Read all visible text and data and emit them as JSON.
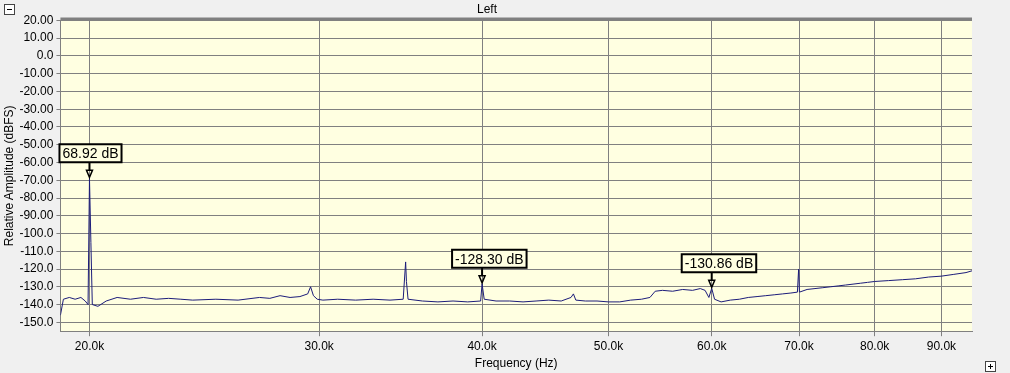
{
  "chart_data": {
    "type": "line",
    "title": "Left",
    "xlabel": "Frequency (Hz)",
    "ylabel": "Relative Amplitude (dBFS)",
    "log": "x",
    "grid": true,
    "color": "#1c1c7a",
    "x": [
      19000,
      19100,
      19300,
      19500,
      19700,
      19850,
      19950,
      20000,
      20050,
      20100,
      20300,
      20600,
      21000,
      21500,
      22000,
      22500,
      23000,
      23500,
      24000,
      25000,
      26000,
      27000,
      27500,
      28000,
      28500,
      29000,
      29400,
      29550,
      29700,
      29900,
      30200,
      31000,
      32000,
      33000,
      34000,
      34800,
      34950,
      35000,
      35100,
      36000,
      37000,
      38000,
      39000,
      39900,
      40000,
      40150,
      41000,
      42000,
      43000,
      44000,
      45000,
      46000,
      46800,
      47000,
      47200,
      48000,
      49000,
      50000,
      51000,
      52000,
      53000,
      53800,
      54300,
      55000,
      56000,
      57000,
      58000,
      58800,
      59300,
      59700,
      60000,
      60300,
      61000,
      62000,
      63000,
      64000,
      65000,
      66000,
      67000,
      68000,
      69000,
      69800,
      69950,
      70050,
      71000,
      72000,
      73000,
      74000,
      75000,
      76000,
      77000,
      78000,
      79000,
      80000,
      82000,
      84000,
      86000,
      88000,
      90000,
      92000,
      94000,
      95000
    ],
    "values": [
      -146,
      -137,
      -136,
      -137,
      -136,
      -138,
      -140,
      -68.92,
      -105,
      -140,
      -141,
      -138,
      -136,
      -137,
      -136,
      -137,
      -136.5,
      -137,
      -137.5,
      -137,
      -137.5,
      -136,
      -136.5,
      -135,
      -136,
      -135.5,
      -134,
      -130,
      -135,
      -137,
      -137.5,
      -137,
      -137.5,
      -137,
      -137.5,
      -137,
      -116,
      -127,
      -137,
      -138,
      -138.5,
      -138,
      -138.5,
      -138,
      -128.3,
      -137,
      -138,
      -138,
      -138.5,
      -138,
      -137.5,
      -138,
      -136,
      -134,
      -137.5,
      -138,
      -138,
      -138.5,
      -138.5,
      -137.5,
      -137,
      -136,
      -132.5,
      -132,
      -132.5,
      -131.5,
      -132,
      -131,
      -132,
      -136,
      -130.86,
      -137,
      -138.5,
      -137.5,
      -137,
      -136,
      -135.5,
      -135,
      -134.5,
      -134,
      -133.5,
      -133,
      -120,
      -133,
      -131.5,
      -131,
      -130.5,
      -130,
      -129.5,
      -129,
      -128.5,
      -128,
      -127.5,
      -127,
      -126.5,
      -126,
      -125.5,
      -124.5,
      -124,
      -123,
      -122,
      -121
    ],
    "xlim": [
      19000,
      95000
    ],
    "xticks": [
      {
        "value": 20000,
        "label": "20.0k"
      },
      {
        "value": 30000,
        "label": "30.0k"
      },
      {
        "value": 40000,
        "label": "40.0k"
      },
      {
        "value": 50000,
        "label": "50.0k"
      },
      {
        "value": 60000,
        "label": "60.0k"
      },
      {
        "value": 70000,
        "label": "70.0k"
      },
      {
        "value": 80000,
        "label": "80.0k"
      },
      {
        "value": 90000,
        "label": "90.0k"
      }
    ],
    "ylim": [
      -155,
      20
    ],
    "yticks": [
      {
        "value": 20,
        "label": "20.00"
      },
      {
        "value": 10,
        "label": "10.00"
      },
      {
        "value": 0,
        "label": "0.0"
      },
      {
        "value": -10,
        "label": "-10.00"
      },
      {
        "value": -20,
        "label": "-20.00"
      },
      {
        "value": -30,
        "label": "-30.00"
      },
      {
        "value": -40,
        "label": "-40.00"
      },
      {
        "value": -50,
        "label": "-50.00"
      },
      {
        "value": -60,
        "label": "-60.00"
      },
      {
        "value": -70,
        "label": "-70.00"
      },
      {
        "value": -80,
        "label": "-80.00"
      },
      {
        "value": -90,
        "label": "-90.00"
      },
      {
        "value": -100,
        "label": "-100.0"
      },
      {
        "value": -110,
        "label": "-110.0"
      },
      {
        "value": -120,
        "label": "-120.0"
      },
      {
        "value": -130,
        "label": "-130.0"
      },
      {
        "value": -140,
        "label": "-140.0"
      },
      {
        "value": -150,
        "label": "-150.0"
      }
    ],
    "annotations": [
      {
        "text": "68.92 dB",
        "x": 20000,
        "y": -68.92
      },
      {
        "text": "-128.30 dB",
        "x": 40000,
        "y": -128.3
      },
      {
        "text": "-130.86 dB",
        "x": 60000,
        "y": -130.86
      }
    ]
  }
}
